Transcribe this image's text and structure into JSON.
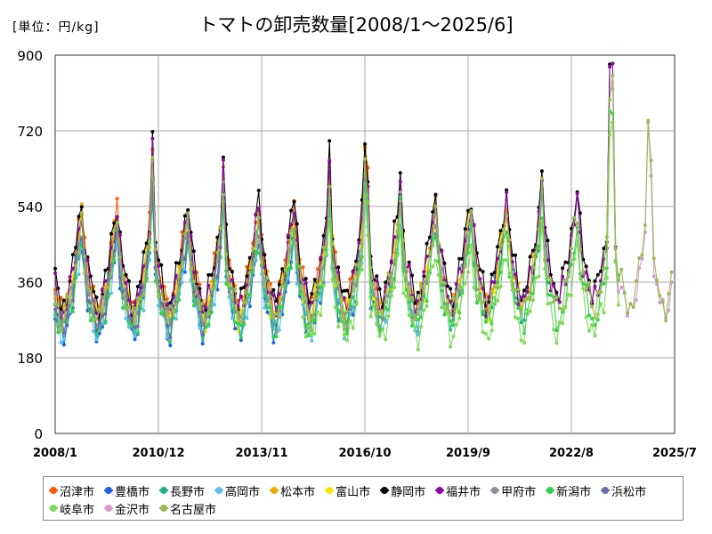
{
  "chart_data": {
    "type": "line",
    "title": "トマトの卸売数量[2008/1～2025/6]",
    "unit_label": "[単位：円/kg]",
    "ylim": [
      0,
      900
    ],
    "yticks": [
      0,
      180,
      360,
      540,
      720,
      900
    ],
    "xticks": [
      "2008/1",
      "2010/12",
      "2013/11",
      "2016/10",
      "2019/9",
      "2022/8",
      "2025/7"
    ],
    "x_start": "2008-01",
    "x_end": "2025-07",
    "grid": true,
    "legend_position": "bottom",
    "series": [
      {
        "name": "沼津市",
        "color": "#FF5A00",
        "start": "2008-01",
        "end": "2017-03",
        "amp": 1.03,
        "offset": 15,
        "phase": 0.0
      },
      {
        "name": "豊橋市",
        "color": "#1E5FE8",
        "start": "2008-01",
        "end": "2017-03",
        "amp": 0.95,
        "offset": -25,
        "phase": 0.7
      },
      {
        "name": "長野市",
        "color": "#1DB38A",
        "start": "2008-01",
        "end": "2021-12",
        "amp": 0.97,
        "offset": -5,
        "phase": 1.3
      },
      {
        "name": "高岡市",
        "color": "#5BC0EB",
        "start": "2008-01",
        "end": "2018-05",
        "amp": 0.92,
        "offset": -10,
        "phase": 2.1
      },
      {
        "name": "松本市",
        "color": "#F2A900",
        "start": "2008-01",
        "end": "2021-10",
        "amp": 1.0,
        "offset": 10,
        "phase": 2.9
      },
      {
        "name": "富山市",
        "color": "#F7E600",
        "start": "2008-01",
        "end": "2020-12",
        "amp": 0.98,
        "offset": 5,
        "phase": 3.6
      },
      {
        "name": "静岡市",
        "color": "#000000",
        "start": "2008-01",
        "end": "2023-10",
        "amp": 1.05,
        "offset": 20,
        "phase": 4.2
      },
      {
        "name": "福井市",
        "color": "#8A0A9C",
        "start": "2008-01",
        "end": "2023-11",
        "amp": 1.02,
        "offset": 10,
        "phase": 4.9
      },
      {
        "name": "甲府市",
        "color": "#8A8F99",
        "start": "2008-01",
        "end": "2019-12",
        "amp": 0.96,
        "offset": 0,
        "phase": 5.5
      },
      {
        "name": "新潟市",
        "color": "#2ED14E",
        "start": "2008-01",
        "end": "2023-12",
        "amp": 0.94,
        "offset": -15,
        "phase": 6.2
      },
      {
        "name": "浜松市",
        "color": "#6B6BA8",
        "start": "2008-01",
        "end": "2012-10",
        "amp": 0.97,
        "offset": -8,
        "phase": 6.8
      },
      {
        "name": "岐阜市",
        "color": "#7ED957",
        "start": "2015-01",
        "end": "2023-12",
        "amp": 0.9,
        "offset": -30,
        "phase": 7.4
      },
      {
        "name": "金沢市",
        "color": "#D89AD0",
        "start": "2023-10",
        "end": "2025-06",
        "amp": 0.95,
        "offset": 0,
        "phase": 8.1
      },
      {
        "name": "名古屋市",
        "color": "#9BBA55",
        "start": "2008-01",
        "end": "2025-06",
        "amp": 0.99,
        "offset": 0,
        "phase": 8.8
      }
    ]
  }
}
